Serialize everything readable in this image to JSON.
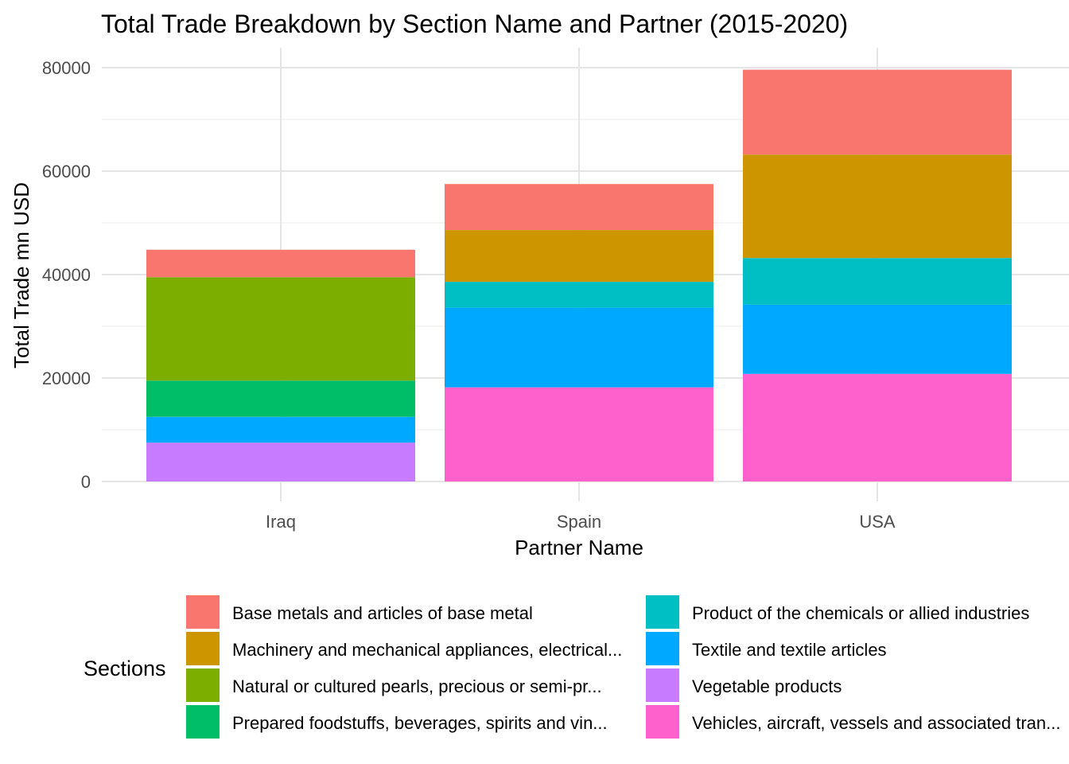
{
  "chart_data": {
    "type": "bar",
    "stacked": true,
    "title": "Total Trade Breakdown by Section Name and Partner (2015-2020)",
    "xlabel": "Partner Name",
    "ylabel": "Total Trade mn USD",
    "ylim": [
      0,
      80000
    ],
    "yticks": [
      "0",
      "20000",
      "40000",
      "60000",
      "80000"
    ],
    "categories": [
      "Iraq",
      "Spain",
      "USA"
    ],
    "legend_title": "Sections",
    "legend_position": "bottom",
    "grid": true,
    "series": [
      {
        "name": "Vehicles, aircraft, vessels and associated tran...",
        "color": "#FF61CC",
        "values": [
          0,
          18200,
          20800
        ]
      },
      {
        "name": "Vegetable products",
        "color": "#C77CFF",
        "values": [
          7500,
          0,
          0
        ]
      },
      {
        "name": "Textile and textile articles",
        "color": "#00A9FF",
        "values": [
          5000,
          15400,
          13400
        ]
      },
      {
        "name": "Product of the chemicals or allied industries",
        "color": "#00BFC4",
        "values": [
          0,
          5000,
          9000
        ]
      },
      {
        "name": "Prepared foodstuffs, beverages, spirits and vin...",
        "color": "#00BE67",
        "values": [
          7000,
          0,
          0
        ]
      },
      {
        "name": "Natural or cultured pearls, precious or semi-pr...",
        "color": "#7CAE00",
        "values": [
          20000,
          0,
          0
        ]
      },
      {
        "name": "Machinery and mechanical appliances, electrical...",
        "color": "#CD9600",
        "values": [
          0,
          10000,
          20000
        ]
      },
      {
        "name": "Base metals and articles of base metal",
        "color": "#F8766D",
        "values": [
          5300,
          8900,
          16400
        ]
      }
    ],
    "legend_order": [
      "Base metals and articles of base metal",
      "Machinery and mechanical appliances, electrical...",
      "Natural or cultured pearls, precious or semi-pr...",
      "Prepared foodstuffs, beverages, spirits and vin...",
      "Product of the chemicals or allied industries",
      "Textile and textile articles",
      "Vegetable products",
      "Vehicles, aircraft, vessels and associated tran..."
    ]
  }
}
